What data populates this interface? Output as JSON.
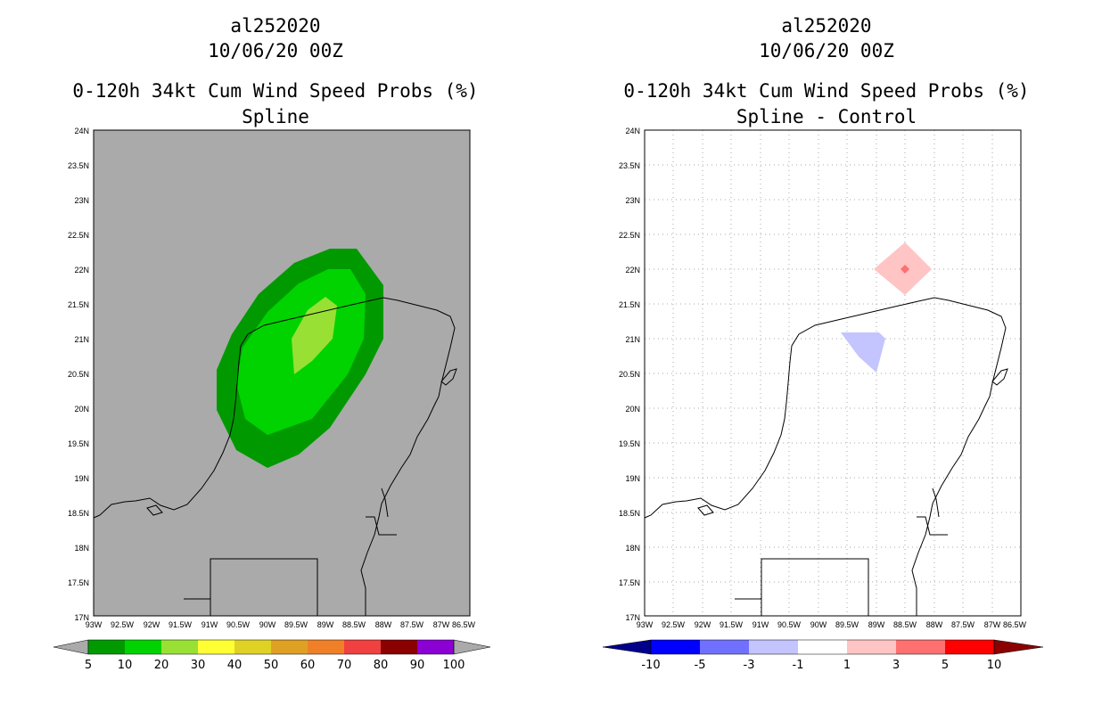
{
  "panels": [
    {
      "id": "left",
      "storm": "al252020",
      "datetime": "10/06/20 00Z",
      "title": "0-120h 34kt Cum Wind Speed Probs (%)",
      "subtitle": "Spline",
      "background": "#aaaaaa",
      "colorbar": {
        "labels": [
          "5",
          "10",
          "20",
          "30",
          "40",
          "50",
          "60",
          "70",
          "80",
          "90",
          "100"
        ],
        "colors": [
          "#009a00",
          "#00d300",
          "#99e035",
          "#ffff33",
          "#dfd224",
          "#dfa124",
          "#f08028",
          "#f04040",
          "#8b0000",
          "#8b00d3"
        ],
        "end_colors": [
          "#aaaaaa",
          "#aaaaaa"
        ]
      }
    },
    {
      "id": "right",
      "storm": "al252020",
      "datetime": "10/06/20 00Z",
      "title": "0-120h 34kt Cum Wind Speed Probs (%)",
      "subtitle": "Spline - Control",
      "background": "#ffffff",
      "colorbar": {
        "labels": [
          "-10",
          "-5",
          "-3",
          "-1",
          "1",
          "3",
          "5",
          "10"
        ],
        "colors": [
          "#0000ff",
          "#7070ff",
          "#c4c4ff",
          "#ffffff",
          "#ffc4c4",
          "#ff7070",
          "#ff0000"
        ],
        "end_colors": [
          "#00008b",
          "#8b0000"
        ]
      }
    }
  ],
  "axes": {
    "lat_labels": [
      "24N",
      "23.5N",
      "23N",
      "22.5N",
      "22N",
      "21.5N",
      "21N",
      "20.5N",
      "20N",
      "19.5N",
      "19N",
      "18.5N",
      "18N",
      "17.5N",
      "17N"
    ],
    "lon_labels": [
      "93W",
      "92.5W",
      "92W",
      "91.5W",
      "91W",
      "90.5W",
      "90W",
      "89.5W",
      "89W",
      "88.5W",
      "88W",
      "87.5W",
      "87W",
      "86.5W"
    ],
    "lat_range": [
      17,
      24
    ],
    "lon_range": [
      -93,
      -86.5
    ]
  }
}
